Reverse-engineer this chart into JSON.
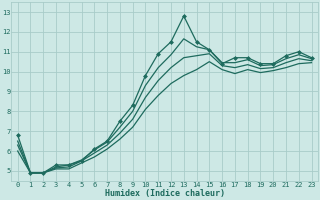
{
  "xlabel": "Humidex (Indice chaleur)",
  "bg_color": "#cde8e5",
  "grid_color": "#a8ccc9",
  "line_color": "#1e6b5e",
  "xlim": [
    -0.5,
    23.5
  ],
  "ylim": [
    4.5,
    13.5
  ],
  "xticks": [
    0,
    1,
    2,
    3,
    4,
    5,
    6,
    7,
    8,
    9,
    10,
    11,
    12,
    13,
    14,
    15,
    16,
    17,
    18,
    19,
    20,
    21,
    22,
    23
  ],
  "yticks": [
    5,
    6,
    7,
    8,
    9,
    10,
    11,
    12,
    13
  ],
  "line1_x": [
    0,
    1,
    2,
    3,
    4,
    5,
    6,
    7,
    8,
    9,
    10,
    11,
    12,
    13,
    14,
    15,
    16,
    17,
    18,
    19,
    20,
    21,
    22,
    23
  ],
  "line1_y": [
    6.8,
    4.9,
    4.9,
    5.3,
    5.3,
    5.5,
    6.1,
    6.5,
    7.5,
    8.3,
    9.8,
    10.9,
    11.5,
    12.8,
    11.5,
    11.1,
    10.4,
    10.7,
    10.7,
    10.4,
    10.4,
    10.8,
    11.0,
    10.7
  ],
  "line2_x": [
    0,
    1,
    2,
    3,
    4,
    5,
    6,
    7,
    8,
    9,
    10,
    11,
    12,
    13,
    14,
    15,
    16,
    17,
    18,
    19,
    20,
    21,
    22,
    23
  ],
  "line2_y": [
    6.5,
    4.9,
    4.9,
    5.2,
    5.3,
    5.55,
    6.05,
    6.45,
    7.2,
    8.0,
    9.3,
    10.2,
    10.85,
    11.65,
    11.25,
    11.1,
    10.45,
    10.45,
    10.6,
    10.3,
    10.35,
    10.65,
    10.85,
    10.65
  ],
  "line3_x": [
    0,
    1,
    2,
    3,
    4,
    5,
    6,
    7,
    8,
    9,
    10,
    11,
    12,
    13,
    14,
    15,
    16,
    17,
    18,
    19,
    20,
    21,
    22,
    23
  ],
  "line3_y": [
    6.3,
    4.9,
    4.9,
    5.15,
    5.2,
    5.5,
    5.9,
    6.3,
    6.9,
    7.6,
    8.7,
    9.55,
    10.2,
    10.7,
    10.8,
    10.9,
    10.3,
    10.2,
    10.35,
    10.15,
    10.2,
    10.45,
    10.65,
    10.55
  ],
  "line4_x": [
    0,
    1,
    2,
    3,
    4,
    5,
    6,
    7,
    8,
    9,
    10,
    11,
    12,
    13,
    14,
    15,
    16,
    17,
    18,
    19,
    20,
    21,
    22,
    23
  ],
  "line4_y": [
    6.0,
    4.9,
    4.9,
    5.1,
    5.1,
    5.4,
    5.7,
    6.1,
    6.6,
    7.2,
    8.1,
    8.8,
    9.4,
    9.8,
    10.1,
    10.5,
    10.1,
    9.9,
    10.1,
    9.95,
    10.05,
    10.2,
    10.4,
    10.45
  ],
  "marker_size": 2.5,
  "line_width": 0.9,
  "xlabel_fontsize": 6.0,
  "tick_fontsize": 5.0
}
